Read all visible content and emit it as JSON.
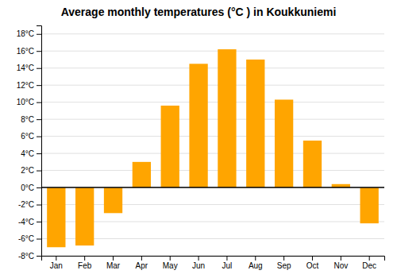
{
  "chart_data": {
    "type": "bar",
    "title": "Average monthly temperatures (°C ) in Koukkuniemi",
    "categories": [
      "Jan",
      "Feb",
      "Mar",
      "Apr",
      "May",
      "Jun",
      "Jul",
      "Aug",
      "Sep",
      "Oct",
      "Nov",
      "Dec"
    ],
    "values": [
      -7.0,
      -6.8,
      -3.0,
      3.0,
      9.6,
      14.5,
      16.2,
      15.0,
      10.3,
      5.5,
      0.4,
      -4.2
    ],
    "color": "#FFA500",
    "ylim": [
      -8,
      19
    ],
    "yticks": [
      {
        "value": -8,
        "label": "-8°C"
      },
      {
        "value": -6,
        "label": "-6°C"
      },
      {
        "value": -4,
        "label": "-4°C"
      },
      {
        "value": -2,
        "label": "-2°C"
      },
      {
        "value": 0,
        "label": "0°C"
      },
      {
        "value": 2,
        "label": "2°C"
      },
      {
        "value": 4,
        "label": "4°C"
      },
      {
        "value": 6,
        "label": "6°C"
      },
      {
        "value": 8,
        "label": "8°C"
      },
      {
        "value": 10,
        "label": "10°C"
      },
      {
        "value": 12,
        "label": "12°C"
      },
      {
        "value": 14,
        "label": "14°C"
      },
      {
        "value": 16,
        "label": "16°C"
      },
      {
        "value": 18,
        "label": "18°C"
      }
    ],
    "grid": true
  }
}
